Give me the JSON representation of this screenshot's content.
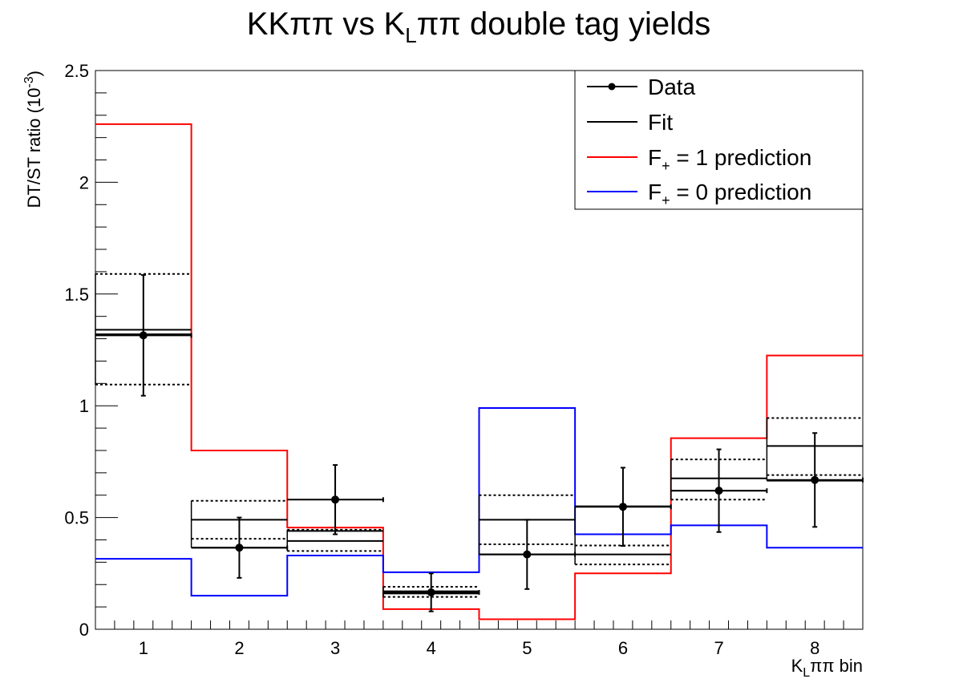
{
  "chart_data": {
    "type": "line",
    "title": "KKππ vs KLππ double tag yields",
    "title_parts": {
      "main": "KKππ vs K",
      "sub": "L",
      "tail": "ππ double tag yields"
    },
    "xlabel": "KLππ bin",
    "xlabel_parts": {
      "main": "K",
      "sub": "L",
      "tail": "ππ bin"
    },
    "ylabel": "DT/ST ratio (10-3)",
    "ylabel_parts": {
      "main": "DT/ST ratio (10",
      "sup": "-3",
      "tail": ")"
    },
    "categories": [
      "1",
      "2",
      "3",
      "4",
      "5",
      "6",
      "7",
      "8"
    ],
    "xlim": [
      0.5,
      8.5
    ],
    "ylim": [
      0,
      2.5
    ],
    "yticks": [
      "0",
      "0.5",
      "1",
      "1.5",
      "2",
      "2.5"
    ],
    "grid": false,
    "legend_position": "top-right",
    "series": [
      {
        "name": "Data",
        "kind": "points",
        "color": "#000000",
        "values": [
          1.315,
          0.365,
          0.58,
          0.165,
          0.335,
          0.548,
          0.62,
          0.668
        ],
        "errors": [
          0.27,
          0.135,
          0.155,
          0.085,
          0.155,
          0.175,
          0.185,
          0.21
        ]
      },
      {
        "name": "Fit",
        "kind": "step-band",
        "color": "#000000",
        "blocks": [
          {
            "central": [
              1.32,
              1.34
            ],
            "band": [
              1.095,
              1.59
            ]
          },
          {
            "central": [
              0.365,
              0.49
            ],
            "band": [
              0.405,
              0.575
            ]
          },
          {
            "central": [
              0.395,
              0.44
            ],
            "band": [
              0.35,
              0.445
            ]
          },
          {
            "central": [
              0.16,
              0.17
            ],
            "band": [
              0.145,
              0.19
            ]
          },
          {
            "central": [
              0.335,
              0.49
            ],
            "band": [
              0.38,
              0.6
            ]
          },
          {
            "central": [
              0.335,
              0.55
            ],
            "band": [
              0.29,
              0.375
            ]
          },
          {
            "central": [
              0.62,
              0.675
            ],
            "band": [
              0.58,
              0.76
            ]
          },
          {
            "central": [
              0.665,
              0.82
            ],
            "band": [
              0.69,
              0.945
            ]
          }
        ]
      },
      {
        "name": "F+ = 1 prediction",
        "name_parts": {
          "main": "F",
          "sub": "+",
          "tail": " = 1 prediction"
        },
        "kind": "step",
        "color": "#ff0000",
        "values": [
          2.26,
          0.8,
          0.455,
          0.09,
          0.045,
          0.25,
          0.855,
          1.225
        ]
      },
      {
        "name": "F+ = 0 prediction",
        "name_parts": {
          "main": "F",
          "sub": "+",
          "tail": " = 0 prediction"
        },
        "kind": "step",
        "color": "#0000ff",
        "values": [
          0.315,
          0.15,
          0.33,
          0.255,
          0.99,
          0.425,
          0.465,
          0.365
        ]
      }
    ]
  }
}
